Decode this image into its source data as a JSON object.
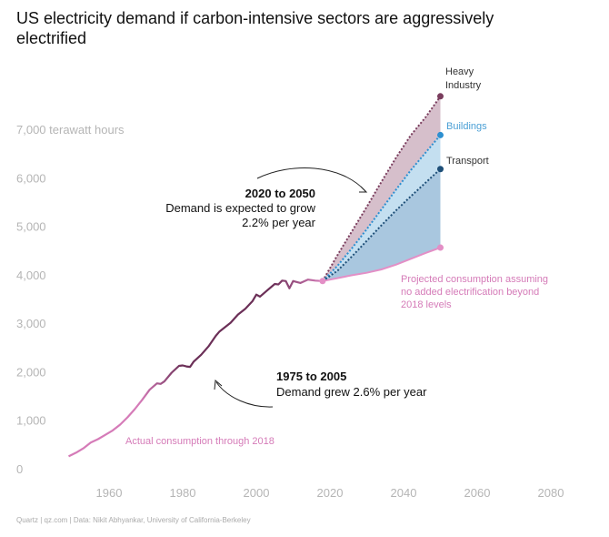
{
  "chart_data": {
    "type": "area",
    "title_lines": [
      "US electricity demand if carbon-intensive sectors are aggressively",
      "electrified"
    ],
    "y_unit_label": "7,000 terawatt hours",
    "y_ticks": [
      0,
      1000,
      2000,
      3000,
      4000,
      5000,
      6000,
      7000
    ],
    "y_tick_labels": [
      "0",
      "1,000",
      "2,000",
      "3,000",
      "4,000",
      "5,000",
      "6,000",
      ""
    ],
    "x_ticks": [
      1960,
      1980,
      2000,
      2020,
      2040,
      2060,
      2080
    ],
    "x_tick_labels": [
      "1960",
      "1980",
      "2000",
      "2020",
      "2040",
      "2060",
      "2080"
    ],
    "xlim": [
      1940,
      2085
    ],
    "ylim": [
      0,
      7000
    ],
    "actual": {
      "name": "Actual consumption through 2018",
      "x": [
        1949,
        1951,
        1953,
        1955,
        1957,
        1959,
        1961,
        1963,
        1965,
        1967,
        1969,
        1971,
        1973,
        1974,
        1975,
        1977,
        1979,
        1980,
        1981,
        1982,
        1983,
        1985,
        1987,
        1989,
        1990,
        1991,
        1993,
        1995,
        1997,
        1999,
        2000,
        2001,
        2003,
        2005,
        2006,
        2007,
        2008,
        2009,
        2010,
        2012,
        2014,
        2016,
        2018
      ],
      "y": [
        255,
        330,
        420,
        540,
        610,
        700,
        790,
        910,
        1060,
        1230,
        1420,
        1630,
        1760,
        1750,
        1800,
        1980,
        2120,
        2130,
        2110,
        2100,
        2210,
        2350,
        2520,
        2740,
        2830,
        2890,
        3010,
        3180,
        3300,
        3460,
        3590,
        3550,
        3680,
        3810,
        3800,
        3880,
        3870,
        3720,
        3870,
        3830,
        3900,
        3880,
        3870
      ]
    },
    "projected_base": {
      "name": "Projected consumption assuming no added electrification beyond 2018 levels",
      "x": [
        2018,
        2022,
        2026,
        2030,
        2034,
        2038,
        2042,
        2046,
        2050
      ],
      "y": [
        3870,
        3930,
        3990,
        4040,
        4110,
        4210,
        4330,
        4450,
        4560
      ]
    },
    "transport": {
      "name": "Transport",
      "x": [
        2018,
        2022,
        2026,
        2030,
        2034,
        2038,
        2042,
        2046,
        2050
      ],
      "y": [
        3870,
        4080,
        4380,
        4700,
        5020,
        5330,
        5620,
        5900,
        6180
      ]
    },
    "buildings": {
      "name": "Buildings",
      "x": [
        2018,
        2022,
        2026,
        2030,
        2034,
        2038,
        2042,
        2046,
        2050
      ],
      "y": [
        3870,
        4180,
        4550,
        4940,
        5350,
        5760,
        6160,
        6520,
        6880
      ]
    },
    "industry": {
      "name": "Heavy Industry",
      "x": [
        2018,
        2022,
        2026,
        2030,
        2034,
        2038,
        2042,
        2046,
        2050
      ],
      "y": [
        3870,
        4400,
        4900,
        5400,
        5920,
        6420,
        6880,
        7250,
        7680
      ]
    },
    "annotations": {
      "growth_2020_2050": {
        "bold": "2020 to 2050",
        "line1": "Demand is expected to grow",
        "line2": "2.2% per year"
      },
      "growth_1975_2005": {
        "bold": "1975 to 2005",
        "line1": "Demand grew 2.6% per year"
      },
      "projected_lines": [
        "Projected consumption assuming",
        "no added electrification beyond",
        "2018 levels"
      ],
      "heavy_lines": [
        "Heavy",
        "Industry"
      ]
    },
    "colors": {
      "actual_early": "#d57bb8",
      "actual_late": "#6b2f57",
      "industry": "#7a3d5d",
      "industry_fill": "#d6bfcb",
      "buildings": "#2d8fd0",
      "buildings_fill": "#c4dff0",
      "transport": "#1e4f78",
      "transport_fill": "#a9c7df",
      "projected": "#e38fc6"
    }
  },
  "footer": "Quartz | qz.com | Data: Nikit Abhyankar, University of California-Berkeley"
}
